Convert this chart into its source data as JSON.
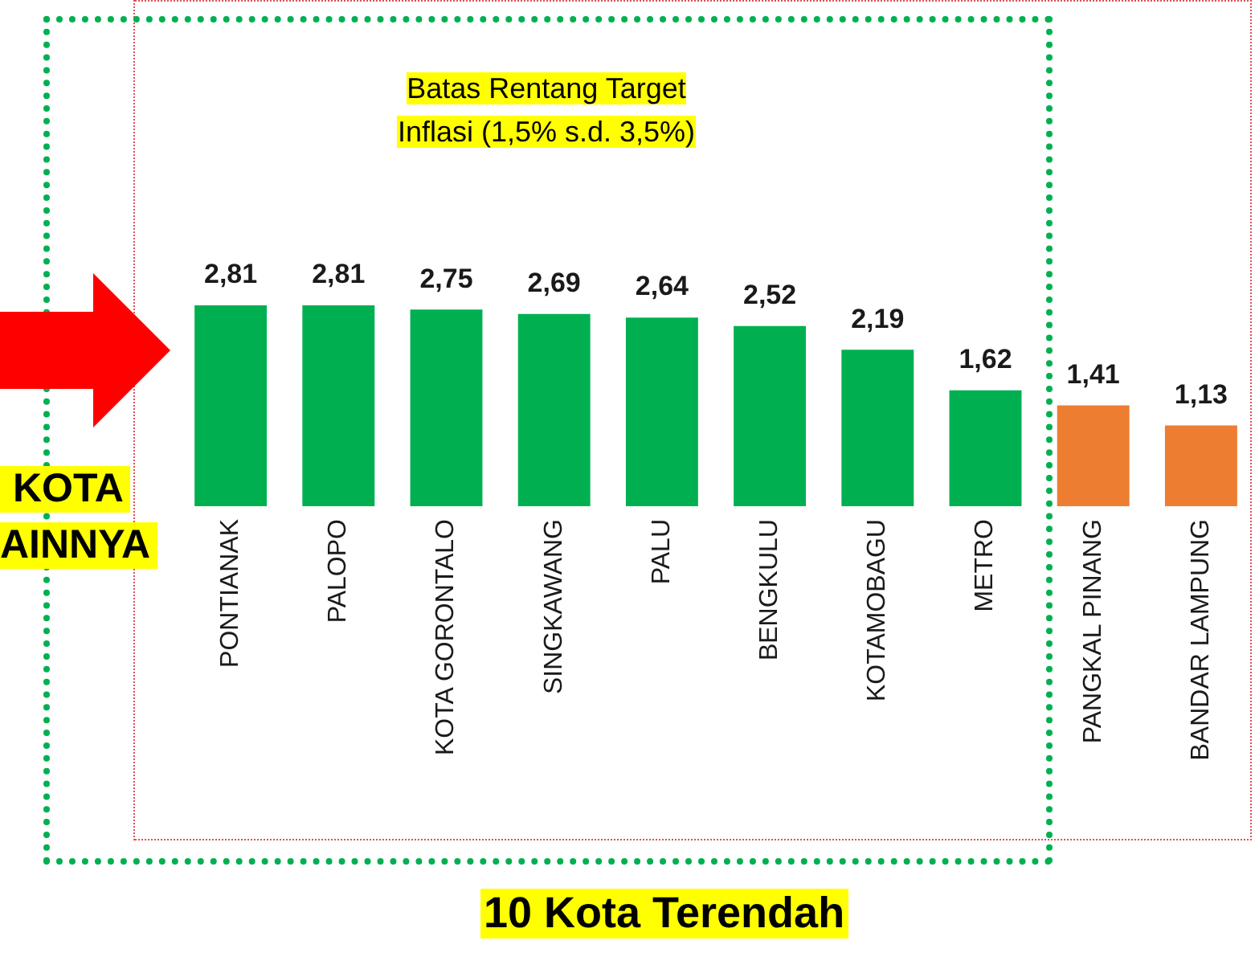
{
  "chart_data": {
    "type": "bar",
    "title": "10 Kota Terendah",
    "annotations": [
      "Batas Rentang Target Inflasi (1,5% s.d. 3,5%)",
      "KOTA",
      "AINNYA"
    ],
    "categories": [
      "PONTIANAK",
      "PALOPO",
      "KOTA GORONTALO",
      "SINGKAWANG",
      "PALU",
      "BENGKULU",
      "KOTAMOBAGU",
      "METRO",
      "PANGKAL PINANG",
      "BANDAR LAMPUNG"
    ],
    "values": [
      2.81,
      2.81,
      2.75,
      2.69,
      2.64,
      2.52,
      2.19,
      1.62,
      1.41,
      1.13
    ],
    "colors": [
      "#00b050",
      "#00b050",
      "#00b050",
      "#00b050",
      "#00b050",
      "#00b050",
      "#00b050",
      "#00b050",
      "#ed7d31",
      "#ed7d31"
    ],
    "value_labels": [
      "2,81",
      "2,81",
      "2,75",
      "2,69",
      "2,64",
      "2,52",
      "2,19",
      "1,62",
      "1,41",
      "1,13"
    ],
    "tick_labels": "x",
    "legend": false,
    "grid": false
  }
}
